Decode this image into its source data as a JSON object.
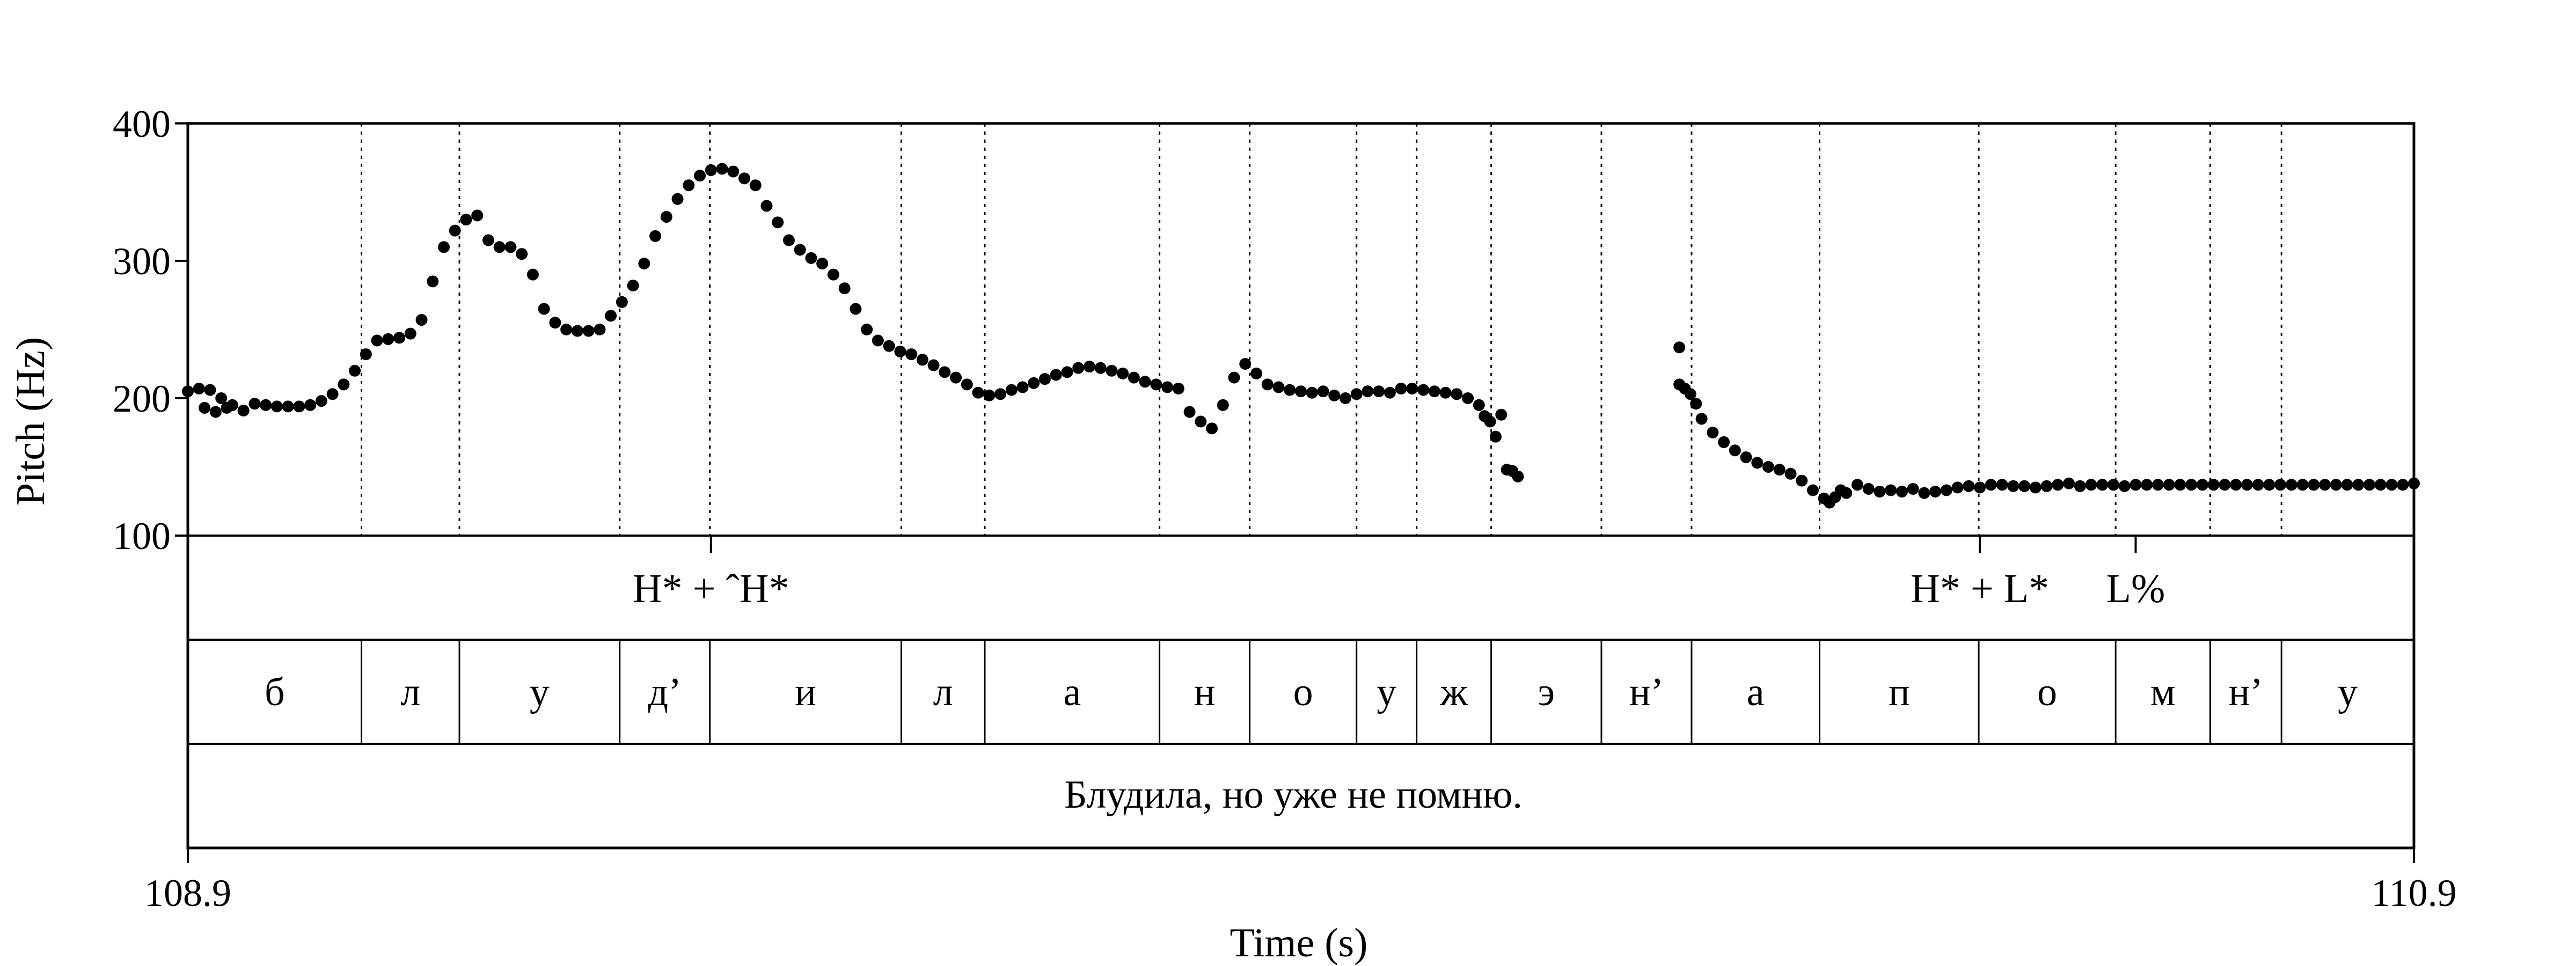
{
  "chart_data": {
    "type": "scatter",
    "xlabel": "Time (s)",
    "ylabel": "Pitch (Hz)",
    "xlim": [
      108.9,
      110.9
    ],
    "ylim": [
      100,
      400
    ],
    "x_tick_labels": [
      "108.9",
      "110.9"
    ],
    "y_ticks": [
      100,
      200,
      300,
      400
    ],
    "y_tick_labels": [
      "100",
      "200",
      "300",
      "400"
    ],
    "grid": false,
    "series": [
      {
        "marker_color": "#000000",
        "points": [
          [
            108.9,
            205
          ],
          [
            108.91,
            207
          ],
          [
            108.915,
            193
          ],
          [
            108.92,
            206
          ],
          [
            108.925,
            190
          ],
          [
            108.93,
            200
          ],
          [
            108.935,
            193
          ],
          [
            108.94,
            195
          ],
          [
            108.95,
            191
          ],
          [
            108.96,
            196
          ],
          [
            108.97,
            195
          ],
          [
            108.98,
            194
          ],
          [
            108.99,
            194
          ],
          [
            109.0,
            194
          ],
          [
            109.01,
            195
          ],
          [
            109.02,
            198
          ],
          [
            109.03,
            203
          ],
          [
            109.04,
            210
          ],
          [
            109.05,
            220
          ],
          [
            109.06,
            232
          ],
          [
            109.07,
            242
          ],
          [
            109.08,
            243
          ],
          [
            109.09,
            244
          ],
          [
            109.1,
            247
          ],
          [
            109.11,
            257
          ],
          [
            109.12,
            285
          ],
          [
            109.13,
            310
          ],
          [
            109.14,
            322
          ],
          [
            109.15,
            330
          ],
          [
            109.16,
            333
          ],
          [
            109.17,
            315
          ],
          [
            109.18,
            310
          ],
          [
            109.19,
            310
          ],
          [
            109.2,
            305
          ],
          [
            109.21,
            290
          ],
          [
            109.22,
            265
          ],
          [
            109.23,
            255
          ],
          [
            109.24,
            250
          ],
          [
            109.25,
            249
          ],
          [
            109.26,
            249
          ],
          [
            109.27,
            250
          ],
          [
            109.28,
            260
          ],
          [
            109.29,
            270
          ],
          [
            109.3,
            282
          ],
          [
            109.31,
            298
          ],
          [
            109.32,
            318
          ],
          [
            109.33,
            332
          ],
          [
            109.34,
            345
          ],
          [
            109.35,
            355
          ],
          [
            109.36,
            362
          ],
          [
            109.37,
            366
          ],
          [
            109.38,
            367
          ],
          [
            109.39,
            365
          ],
          [
            109.4,
            360
          ],
          [
            109.41,
            355
          ],
          [
            109.42,
            340
          ],
          [
            109.43,
            328
          ],
          [
            109.44,
            315
          ],
          [
            109.45,
            308
          ],
          [
            109.46,
            302
          ],
          [
            109.47,
            298
          ],
          [
            109.48,
            290
          ],
          [
            109.49,
            280
          ],
          [
            109.5,
            265
          ],
          [
            109.51,
            250
          ],
          [
            109.52,
            242
          ],
          [
            109.53,
            238
          ],
          [
            109.54,
            234
          ],
          [
            109.55,
            232
          ],
          [
            109.56,
            228
          ],
          [
            109.57,
            224
          ],
          [
            109.58,
            219
          ],
          [
            109.59,
            215
          ],
          [
            109.6,
            210
          ],
          [
            109.61,
            204
          ],
          [
            109.62,
            202
          ],
          [
            109.63,
            203
          ],
          [
            109.64,
            206
          ],
          [
            109.65,
            208
          ],
          [
            109.66,
            211
          ],
          [
            109.67,
            214
          ],
          [
            109.68,
            217
          ],
          [
            109.69,
            219
          ],
          [
            109.7,
            222
          ],
          [
            109.71,
            223
          ],
          [
            109.72,
            222
          ],
          [
            109.73,
            220
          ],
          [
            109.74,
            218
          ],
          [
            109.75,
            215
          ],
          [
            109.76,
            212
          ],
          [
            109.77,
            210
          ],
          [
            109.78,
            208
          ],
          [
            109.79,
            207
          ],
          [
            109.8,
            190
          ],
          [
            109.81,
            183
          ],
          [
            109.82,
            178
          ],
          [
            109.83,
            195
          ],
          [
            109.84,
            215
          ],
          [
            109.85,
            225
          ],
          [
            109.86,
            218
          ],
          [
            109.87,
            210
          ],
          [
            109.88,
            208
          ],
          [
            109.89,
            206
          ],
          [
            109.9,
            205
          ],
          [
            109.91,
            204
          ],
          [
            109.92,
            205
          ],
          [
            109.93,
            202
          ],
          [
            109.94,
            200
          ],
          [
            109.95,
            203
          ],
          [
            109.96,
            205
          ],
          [
            109.97,
            205
          ],
          [
            109.98,
            204
          ],
          [
            109.99,
            207
          ],
          [
            110.0,
            207
          ],
          [
            110.01,
            206
          ],
          [
            110.02,
            205
          ],
          [
            110.03,
            204
          ],
          [
            110.04,
            203
          ],
          [
            110.05,
            200
          ],
          [
            110.06,
            195
          ],
          [
            110.065,
            187
          ],
          [
            110.07,
            183
          ],
          [
            110.075,
            172
          ],
          [
            110.08,
            188
          ],
          [
            110.085,
            148
          ],
          [
            110.09,
            147
          ],
          [
            110.095,
            143
          ],
          [
            110.24,
            237
          ],
          [
            110.24,
            210
          ],
          [
            110.245,
            207
          ],
          [
            110.25,
            203
          ],
          [
            110.255,
            196
          ],
          [
            110.26,
            185
          ],
          [
            110.27,
            175
          ],
          [
            110.28,
            168
          ],
          [
            110.29,
            162
          ],
          [
            110.3,
            157
          ],
          [
            110.31,
            153
          ],
          [
            110.32,
            150
          ],
          [
            110.33,
            148
          ],
          [
            110.34,
            145
          ],
          [
            110.35,
            140
          ],
          [
            110.36,
            133
          ],
          [
            110.37,
            127
          ],
          [
            110.375,
            124
          ],
          [
            110.38,
            128
          ],
          [
            110.385,
            133
          ],
          [
            110.39,
            131
          ],
          [
            110.4,
            137
          ],
          [
            110.41,
            134
          ],
          [
            110.42,
            132
          ],
          [
            110.43,
            133
          ],
          [
            110.44,
            132
          ],
          [
            110.45,
            134
          ],
          [
            110.46,
            131
          ],
          [
            110.47,
            132
          ],
          [
            110.48,
            133
          ],
          [
            110.49,
            135
          ],
          [
            110.5,
            136
          ],
          [
            110.51,
            135
          ],
          [
            110.52,
            137
          ],
          [
            110.53,
            137
          ],
          [
            110.54,
            136
          ],
          [
            110.55,
            136
          ],
          [
            110.56,
            135
          ],
          [
            110.57,
            136
          ],
          [
            110.58,
            137
          ],
          [
            110.59,
            138
          ],
          [
            110.6,
            136
          ],
          [
            110.61,
            137
          ],
          [
            110.62,
            137
          ],
          [
            110.63,
            137
          ],
          [
            110.64,
            136
          ],
          [
            110.65,
            137
          ],
          [
            110.66,
            137
          ],
          [
            110.67,
            137
          ],
          [
            110.68,
            137
          ],
          [
            110.69,
            137
          ],
          [
            110.7,
            137
          ],
          [
            110.71,
            137
          ],
          [
            110.72,
            137
          ],
          [
            110.73,
            137
          ],
          [
            110.74,
            137
          ],
          [
            110.75,
            137
          ],
          [
            110.76,
            137
          ],
          [
            110.77,
            137
          ],
          [
            110.78,
            137
          ],
          [
            110.79,
            137
          ],
          [
            110.8,
            137
          ],
          [
            110.81,
            137
          ],
          [
            110.82,
            137
          ],
          [
            110.83,
            137
          ],
          [
            110.84,
            137
          ],
          [
            110.85,
            137
          ],
          [
            110.86,
            137
          ],
          [
            110.87,
            137
          ],
          [
            110.88,
            137
          ],
          [
            110.89,
            137
          ],
          [
            110.9,
            138
          ]
        ]
      }
    ],
    "tone_tier": [
      {
        "label": "H* + ˆH*",
        "time": 109.37
      },
      {
        "label": "H* + L*",
        "time": 110.51
      },
      {
        "label": "L%",
        "time": 110.65
      }
    ],
    "tone_marks": [
      109.37,
      110.51,
      110.65
    ],
    "segment_tier": [
      {
        "label": "б",
        "start": 108.9,
        "end": 109.056
      },
      {
        "label": "л",
        "start": 109.056,
        "end": 109.144
      },
      {
        "label": "у",
        "start": 109.144,
        "end": 109.288
      },
      {
        "label": "д’",
        "start": 109.288,
        "end": 109.369
      },
      {
        "label": "и",
        "start": 109.369,
        "end": 109.541
      },
      {
        "label": "л",
        "start": 109.541,
        "end": 109.616
      },
      {
        "label": "а",
        "start": 109.616,
        "end": 109.773
      },
      {
        "label": "н",
        "start": 109.773,
        "end": 109.854
      },
      {
        "label": "о",
        "start": 109.854,
        "end": 109.95
      },
      {
        "label": "у",
        "start": 109.95,
        "end": 110.004
      },
      {
        "label": "ж",
        "start": 110.004,
        "end": 110.071
      },
      {
        "label": "э",
        "start": 110.071,
        "end": 110.17
      },
      {
        "label": "н’",
        "start": 110.17,
        "end": 110.251
      },
      {
        "label": "а",
        "start": 110.251,
        "end": 110.366
      },
      {
        "label": "п",
        "start": 110.366,
        "end": 110.509
      },
      {
        "label": "о",
        "start": 110.509,
        "end": 110.632
      },
      {
        "label": "м",
        "start": 110.632,
        "end": 110.717
      },
      {
        "label": "н’",
        "start": 110.717,
        "end": 110.781
      },
      {
        "label": "у",
        "start": 110.781,
        "end": 110.9
      }
    ],
    "sentence_tier": "Блудила, но уже не помню."
  }
}
